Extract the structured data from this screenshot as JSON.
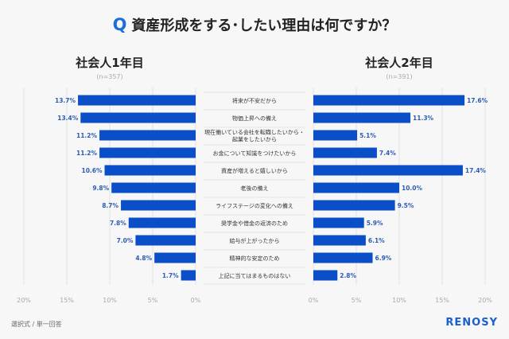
{
  "title": {
    "q": "Q",
    "text": "資産形成をする･したい理由は何ですか？"
  },
  "footer": {
    "note": "選択式 / 単一回答",
    "logo": "RENOSY"
  },
  "colors": {
    "bar": "#0a4fc8",
    "label": "#2a5cb8",
    "accent": "#1a6fe0",
    "grid": "#e2e2e2"
  },
  "chart_data": [
    {
      "type": "bar",
      "orientation": "horizontal",
      "direction": "leftward",
      "title": "社会人1年目",
      "subtitle": "(n=357)",
      "xlim": [
        0,
        20
      ],
      "xticks": [
        "20%",
        "15%",
        "10%",
        "5%",
        "0%"
      ],
      "grid": true,
      "categories": [
        "将来が不安だから",
        "物価上昇への備え",
        "現在働いている会社を転職したいから・\n起業をしたいから",
        "お金について知識をつけたいから",
        "資産が増えると嬉しいから",
        "老後の備え",
        "ライフステージの変化への備え",
        "奨学金や借金の返済のため",
        "給与が上がったから",
        "精神的な安定のため",
        "上記に当てはまるものはない"
      ],
      "values": [
        13.7,
        13.4,
        11.2,
        11.2,
        10.6,
        9.8,
        8.7,
        7.8,
        7.0,
        4.8,
        1.7
      ],
      "value_labels": [
        "13.7%",
        "13.4%",
        "11.2%",
        "11.2%",
        "10.6%",
        "9.8%",
        "8.7%",
        "7.8%",
        "7.0%",
        "4.8%",
        "1.7%"
      ]
    },
    {
      "type": "bar",
      "orientation": "horizontal",
      "direction": "rightward",
      "title": "社会人2年目",
      "subtitle": "(n=391)",
      "xlim": [
        0,
        20
      ],
      "xticks": [
        "0%",
        "5%",
        "10%",
        "15%",
        "20%"
      ],
      "grid": true,
      "values": [
        17.6,
        11.3,
        5.1,
        7.4,
        17.4,
        10.0,
        9.5,
        5.9,
        6.1,
        6.9,
        2.8
      ],
      "value_labels": [
        "17.6%",
        "11.3%",
        "5.1%",
        "7.4%",
        "17.4%",
        "10.0%",
        "9.5%",
        "5.9%",
        "6.1%",
        "6.9%",
        "2.8%"
      ]
    }
  ]
}
